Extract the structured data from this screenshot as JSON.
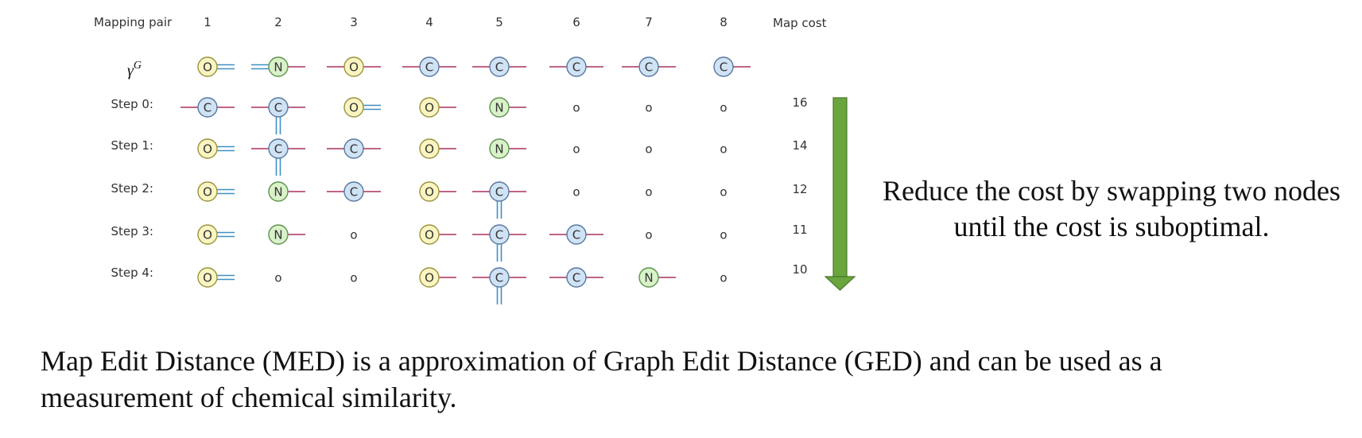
{
  "header": {
    "mapping_pair_label": "Mapping pair",
    "columns": [
      "1",
      "2",
      "3",
      "4",
      "5",
      "6",
      "7",
      "8"
    ],
    "map_cost_label": "Map cost"
  },
  "target_row": {
    "label_symbol": "γ",
    "label_superscript": "G",
    "nodes": [
      {
        "element": "O",
        "left": "none",
        "right": "double",
        "down": "none"
      },
      {
        "element": "N",
        "left": "double",
        "right": "single",
        "down": "none"
      },
      {
        "element": "O",
        "left": "single",
        "right": "single",
        "down": "none"
      },
      {
        "element": "C",
        "left": "single",
        "right": "single",
        "down": "none"
      },
      {
        "element": "C",
        "left": "single",
        "right": "single",
        "down": "none"
      },
      {
        "element": "C",
        "left": "single",
        "right": "single",
        "down": "none"
      },
      {
        "element": "C",
        "left": "single",
        "right": "single",
        "down": "none"
      },
      {
        "element": "C",
        "left": "none",
        "right": "single",
        "down": "none"
      }
    ]
  },
  "steps": [
    {
      "label": "Step 0:",
      "cost": "16",
      "nodes": [
        {
          "element": "C",
          "left": "single",
          "right": "single",
          "down": "none"
        },
        {
          "element": "C",
          "left": "single",
          "right": "single",
          "down": "double"
        },
        {
          "element": "O",
          "left": "none",
          "right": "double",
          "down": "none"
        },
        {
          "element": "O",
          "left": "none",
          "right": "single",
          "down": "none"
        },
        {
          "element": "N",
          "left": "none",
          "right": "single",
          "down": "none"
        },
        {
          "element": "o",
          "empty": true
        },
        {
          "element": "o",
          "empty": true
        },
        {
          "element": "o",
          "empty": true
        }
      ]
    },
    {
      "label": "Step 1:",
      "cost": "14",
      "nodes": [
        {
          "element": "O",
          "left": "none",
          "right": "double",
          "down": "none"
        },
        {
          "element": "C",
          "left": "single",
          "right": "single",
          "down": "double"
        },
        {
          "element": "C",
          "left": "single",
          "right": "single",
          "down": "none"
        },
        {
          "element": "O",
          "left": "none",
          "right": "single",
          "down": "none"
        },
        {
          "element": "N",
          "left": "none",
          "right": "single",
          "down": "none"
        },
        {
          "element": "o",
          "empty": true
        },
        {
          "element": "o",
          "empty": true
        },
        {
          "element": "o",
          "empty": true
        }
      ]
    },
    {
      "label": "Step 2:",
      "cost": "12",
      "nodes": [
        {
          "element": "O",
          "left": "none",
          "right": "double",
          "down": "none"
        },
        {
          "element": "N",
          "left": "none",
          "right": "single",
          "down": "none"
        },
        {
          "element": "C",
          "left": "single",
          "right": "single",
          "down": "none"
        },
        {
          "element": "O",
          "left": "none",
          "right": "single",
          "down": "none"
        },
        {
          "element": "C",
          "left": "single",
          "right": "single",
          "down": "double"
        },
        {
          "element": "o",
          "empty": true
        },
        {
          "element": "o",
          "empty": true
        },
        {
          "element": "o",
          "empty": true
        }
      ]
    },
    {
      "label": "Step 3:",
      "cost": "11",
      "nodes": [
        {
          "element": "O",
          "left": "none",
          "right": "double",
          "down": "none"
        },
        {
          "element": "N",
          "left": "none",
          "right": "single",
          "down": "none"
        },
        {
          "element": "o",
          "empty": true
        },
        {
          "element": "O",
          "left": "none",
          "right": "single",
          "down": "none"
        },
        {
          "element": "C",
          "left": "single",
          "right": "single",
          "down": "double"
        },
        {
          "element": "C",
          "left": "single",
          "right": "single",
          "down": "none"
        },
        {
          "element": "o",
          "empty": true
        },
        {
          "element": "o",
          "empty": true
        }
      ]
    },
    {
      "label": "Step 4:",
      "cost": "10",
      "nodes": [
        {
          "element": "O",
          "left": "none",
          "right": "double",
          "down": "none"
        },
        {
          "element": "o",
          "empty": true
        },
        {
          "element": "o",
          "empty": true
        },
        {
          "element": "O",
          "left": "none",
          "right": "single",
          "down": "none"
        },
        {
          "element": "C",
          "left": "single",
          "right": "single",
          "down": "double"
        },
        {
          "element": "C",
          "left": "single",
          "right": "single",
          "down": "none"
        },
        {
          "element": "N",
          "left": "none",
          "right": "single",
          "down": "none"
        },
        {
          "element": "o",
          "empty": true
        }
      ]
    }
  ],
  "side_note": {
    "line1": "Reduce the cost by swapping two nodes",
    "line2": "until the cost is suboptimal."
  },
  "caption": {
    "line1": "Map Edit Distance (MED) is a approximation of Graph Edit Distance (GED) and can be used as a",
    "line2": "measurement of chemical similarity."
  },
  "colors": {
    "O_fill": "#fbf5c2",
    "O_stroke": "#9a9440",
    "N_fill": "#d9f2c9",
    "N_stroke": "#5f9450",
    "C_fill": "#cfe3f5",
    "C_stroke": "#5a78a0",
    "single_bond": "#a8305e",
    "double_bond": "#3f8fc4",
    "arrow_fill": "#6aa53e",
    "arrow_stroke": "#4a7a2a"
  }
}
